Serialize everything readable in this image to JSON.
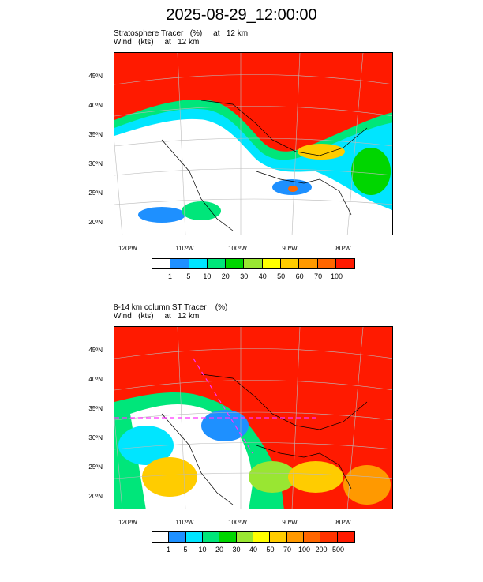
{
  "title": "2025-08-29_12:00:00",
  "panels": [
    {
      "label1": "Stratosphere Tracer   (%)     at   12 km",
      "label2": "Wind   (kts)     at   12 km",
      "lat_labels": [
        "45ºN",
        "40ºN",
        "35ºN",
        "30ºN",
        "25ºN",
        "20ºN"
      ],
      "lon_labels": [
        "120ºW",
        "110ºW",
        "100ºW",
        "90ºW",
        "80ºW"
      ],
      "colorbar_levels": [
        "1",
        "5",
        "10",
        "20",
        "30",
        "40",
        "50",
        "60",
        "70",
        "100"
      ]
    },
    {
      "label1": "8-14 km column ST Tracer    (%)",
      "label2": "Wind   (kts)     at   12 km",
      "lat_labels": [
        "45ºN",
        "40ºN",
        "35ºN",
        "30ºN",
        "25ºN",
        "20ºN"
      ],
      "lon_labels": [
        "120ºW",
        "110ºW",
        "100ºW",
        "90ºW",
        "80ºW"
      ],
      "colorbar_levels": [
        "1",
        "5",
        "10",
        "20",
        "30",
        "40",
        "50",
        "70",
        "100",
        "200",
        "500"
      ]
    }
  ],
  "colors": {
    "panel1": [
      "#ffffff",
      "#1e90ff",
      "#00e5ff",
      "#00e67a",
      "#00d600",
      "#99e632",
      "#ffff00",
      "#ffcc00",
      "#ff9900",
      "#ff6600",
      "#ff1a00"
    ],
    "panel2": [
      "#ffffff",
      "#1e90ff",
      "#00e5ff",
      "#00e67a",
      "#00d600",
      "#99e632",
      "#ffff00",
      "#ffcc00",
      "#ff9900",
      "#ff6600",
      "#ff3300",
      "#ff1a00"
    ]
  }
}
